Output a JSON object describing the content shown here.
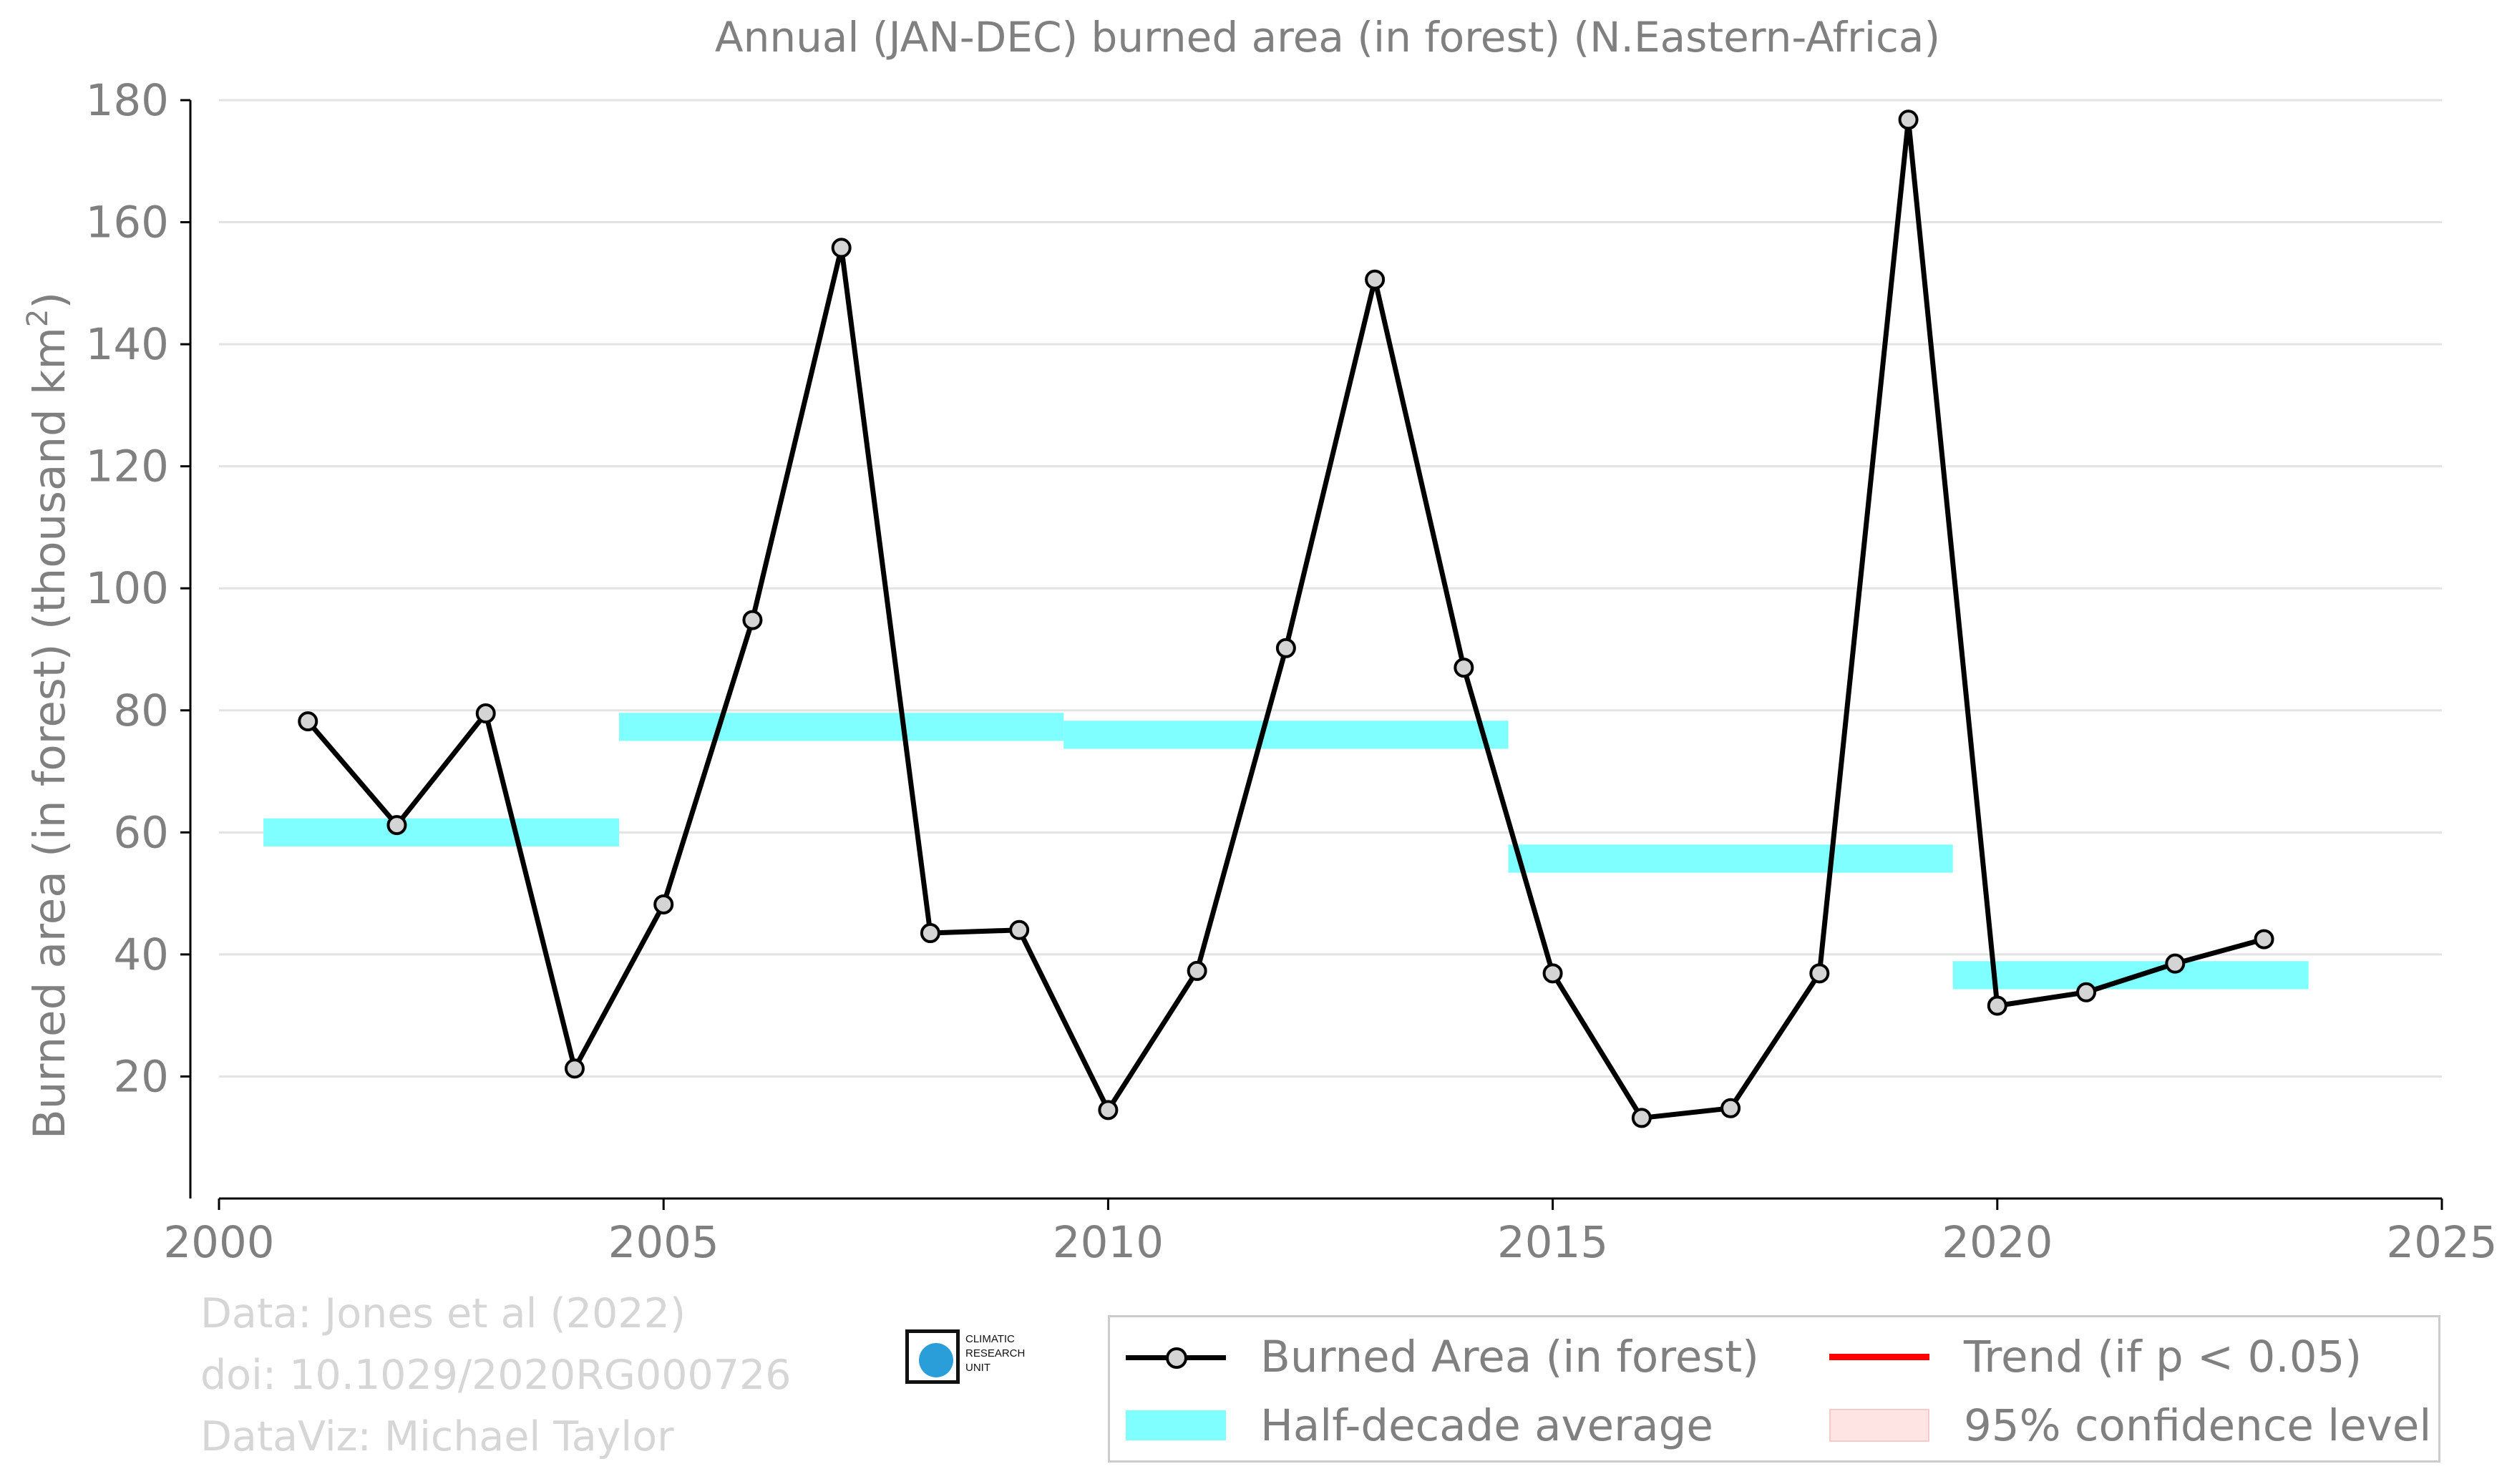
{
  "chart_data": {
    "type": "line",
    "title": "Annual (JAN-DEC) burned area (in forest) (N.Eastern-Africa)",
    "xlabel": "",
    "ylabel": "Burned area (in forest) (thousand km",
    "ylabel_superscript": "2",
    "ylabel_close": ")",
    "xlim": [
      2000,
      2025
    ],
    "ylim": [
      0,
      180
    ],
    "xticks": [
      2000,
      2005,
      2010,
      2015,
      2020,
      2025
    ],
    "yticks": [
      20,
      40,
      60,
      80,
      100,
      120,
      140,
      160,
      180
    ],
    "grid": "horizontal",
    "legend_position": "bottom-right",
    "series": [
      {
        "name": "Burned Area (in forest)",
        "color": "#000000",
        "marker_fill": "#d4d4d4",
        "x": [
          2001,
          2002,
          2003,
          2004,
          2005,
          2006,
          2007,
          2008,
          2009,
          2010,
          2011,
          2012,
          2013,
          2014,
          2015,
          2016,
          2017,
          2018,
          2019,
          2020,
          2021,
          2022,
          2023
        ],
        "y": [
          78.2,
          61.2,
          79.5,
          21.3,
          48.2,
          94.8,
          155.8,
          43.5,
          44.0,
          14.5,
          37.3,
          90.2,
          150.6,
          87.0,
          36.9,
          13.2,
          14.8,
          36.9,
          176.8,
          31.6,
          33.8,
          38.5,
          42.5
        ]
      }
    ],
    "half_decade_average": {
      "name": "Half-decade average",
      "color": "#7fffff",
      "segments": [
        {
          "x_start": 2000.5,
          "x_end": 2004.5,
          "y": 60.0
        },
        {
          "x_start": 2004.5,
          "x_end": 2009.5,
          "y": 77.3
        },
        {
          "x_start": 2009.5,
          "x_end": 2014.5,
          "y": 76.0
        },
        {
          "x_start": 2014.5,
          "x_end": 2019.5,
          "y": 55.7
        },
        {
          "x_start": 2019.5,
          "x_end": 2023.5,
          "y": 36.6
        }
      ],
      "band_halfwidth": 2.3
    },
    "legend": [
      {
        "key": "line",
        "label": "Burned Area (in forest)",
        "color": "#000000"
      },
      {
        "key": "trend",
        "label": "Trend (if p < 0.05)",
        "color": "#ff0000"
      },
      {
        "key": "band",
        "label": "Half-decade average",
        "color": "#7fffff"
      },
      {
        "key": "conf",
        "label": "95% confidence level",
        "color": "#ffe4e4"
      }
    ]
  },
  "credits": {
    "line1": "Data: Jones et al (2022)",
    "line2": "doi: 10.1029/2020RG000726",
    "line3": "DataViz: Michael Taylor"
  },
  "logo": {
    "line1": "CLIMATIC",
    "line2": "RESEARCH",
    "line3": "UNIT"
  },
  "colors": {
    "axis_text": "#808080",
    "grid": "#e0e0e0",
    "credits": "#d6d6d6"
  }
}
